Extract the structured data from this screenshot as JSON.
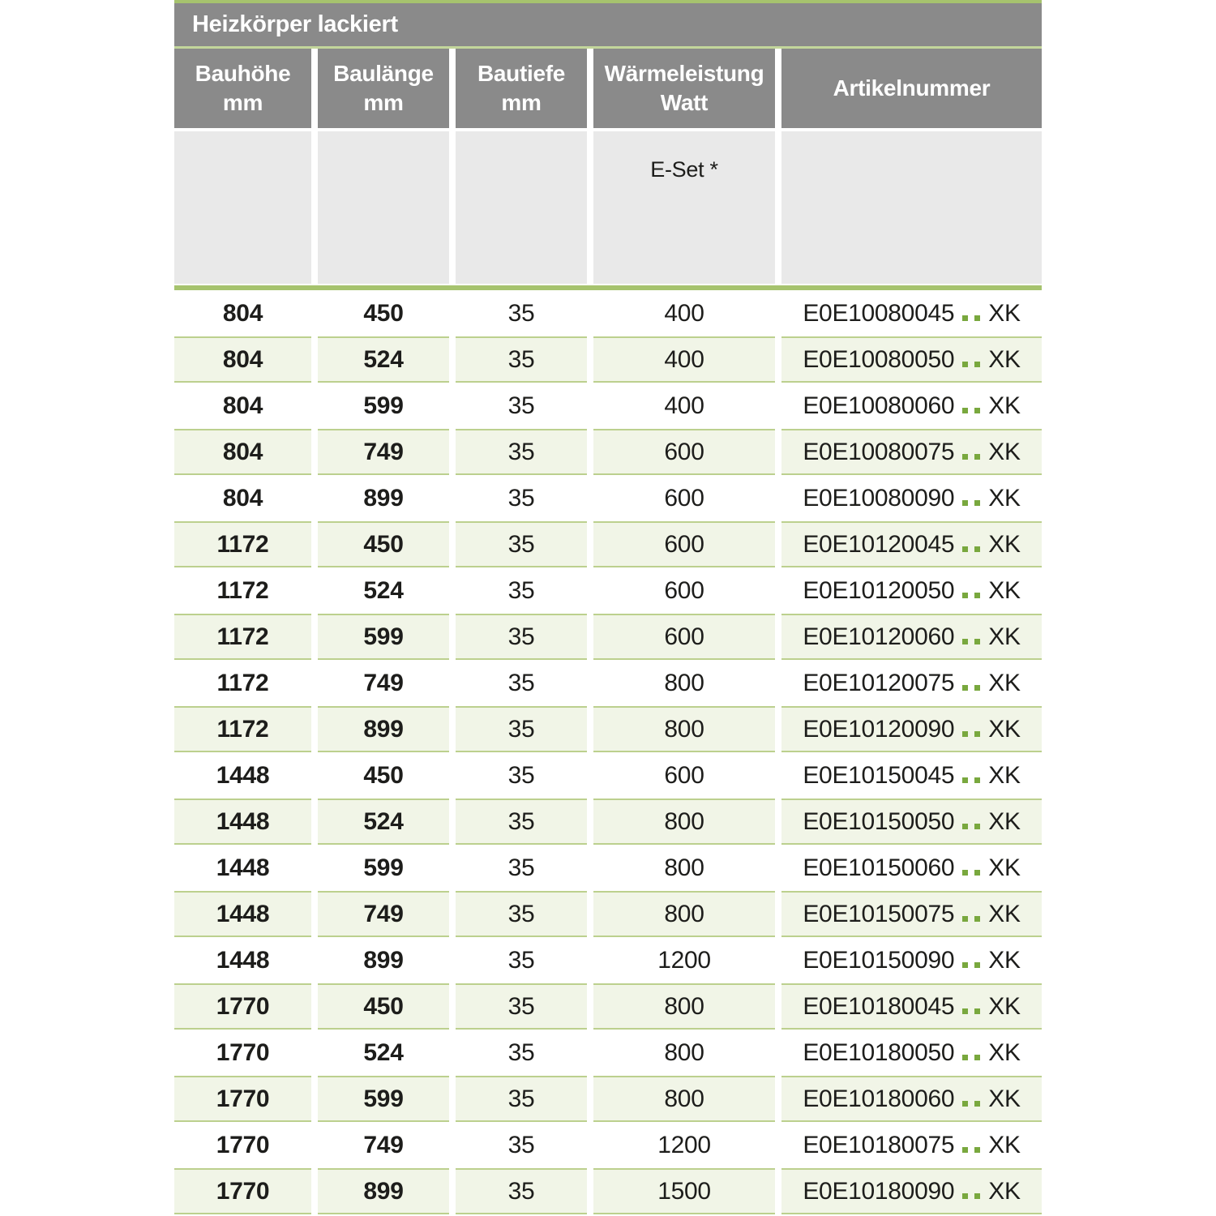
{
  "table": {
    "title": "Heizkörper lackiert",
    "columns": [
      {
        "label": "Bauhöhe",
        "unit": "mm"
      },
      {
        "label": "Baulänge",
        "unit": "mm"
      },
      {
        "label": "Bautiefe",
        "unit": "mm"
      },
      {
        "label": "Wärmeleistung",
        "unit": "Watt",
        "subheader": "E-Set *"
      },
      {
        "label": "Artikelnummer",
        "unit": ""
      }
    ],
    "rows": [
      {
        "bauhoehe": "804",
        "baulaenge": "450",
        "bautiefe": "35",
        "watt": "400",
        "art_prefix": "E0E10080045",
        "art_suffix": "XK"
      },
      {
        "bauhoehe": "804",
        "baulaenge": "524",
        "bautiefe": "35",
        "watt": "400",
        "art_prefix": "E0E10080050",
        "art_suffix": "XK"
      },
      {
        "bauhoehe": "804",
        "baulaenge": "599",
        "bautiefe": "35",
        "watt": "400",
        "art_prefix": "E0E10080060",
        "art_suffix": "XK"
      },
      {
        "bauhoehe": "804",
        "baulaenge": "749",
        "bautiefe": "35",
        "watt": "600",
        "art_prefix": "E0E10080075",
        "art_suffix": "XK"
      },
      {
        "bauhoehe": "804",
        "baulaenge": "899",
        "bautiefe": "35",
        "watt": "600",
        "art_prefix": "E0E10080090",
        "art_suffix": "XK"
      },
      {
        "bauhoehe": "1172",
        "baulaenge": "450",
        "bautiefe": "35",
        "watt": "600",
        "art_prefix": "E0E10120045",
        "art_suffix": "XK"
      },
      {
        "bauhoehe": "1172",
        "baulaenge": "524",
        "bautiefe": "35",
        "watt": "600",
        "art_prefix": "E0E10120050",
        "art_suffix": "XK"
      },
      {
        "bauhoehe": "1172",
        "baulaenge": "599",
        "bautiefe": "35",
        "watt": "600",
        "art_prefix": "E0E10120060",
        "art_suffix": "XK"
      },
      {
        "bauhoehe": "1172",
        "baulaenge": "749",
        "bautiefe": "35",
        "watt": "800",
        "art_prefix": "E0E10120075",
        "art_suffix": "XK"
      },
      {
        "bauhoehe": "1172",
        "baulaenge": "899",
        "bautiefe": "35",
        "watt": "800",
        "art_prefix": "E0E10120090",
        "art_suffix": "XK"
      },
      {
        "bauhoehe": "1448",
        "baulaenge": "450",
        "bautiefe": "35",
        "watt": "600",
        "art_prefix": "E0E10150045",
        "art_suffix": "XK"
      },
      {
        "bauhoehe": "1448",
        "baulaenge": "524",
        "bautiefe": "35",
        "watt": "800",
        "art_prefix": "E0E10150050",
        "art_suffix": "XK"
      },
      {
        "bauhoehe": "1448",
        "baulaenge": "599",
        "bautiefe": "35",
        "watt": "800",
        "art_prefix": "E0E10150060",
        "art_suffix": "XK"
      },
      {
        "bauhoehe": "1448",
        "baulaenge": "749",
        "bautiefe": "35",
        "watt": "800",
        "art_prefix": "E0E10150075",
        "art_suffix": "XK"
      },
      {
        "bauhoehe": "1448",
        "baulaenge": "899",
        "bautiefe": "35",
        "watt": "1200",
        "art_prefix": "E0E10150090",
        "art_suffix": "XK"
      },
      {
        "bauhoehe": "1770",
        "baulaenge": "450",
        "bautiefe": "35",
        "watt": "800",
        "art_prefix": "E0E10180045",
        "art_suffix": "XK"
      },
      {
        "bauhoehe": "1770",
        "baulaenge": "524",
        "bautiefe": "35",
        "watt": "800",
        "art_prefix": "E0E10180050",
        "art_suffix": "XK"
      },
      {
        "bauhoehe": "1770",
        "baulaenge": "599",
        "bautiefe": "35",
        "watt": "800",
        "art_prefix": "E0E10180060",
        "art_suffix": "XK"
      },
      {
        "bauhoehe": "1770",
        "baulaenge": "749",
        "bautiefe": "35",
        "watt": "1200",
        "art_prefix": "E0E10180075",
        "art_suffix": "XK"
      },
      {
        "bauhoehe": "1770",
        "baulaenge": "899",
        "bautiefe": "35",
        "watt": "1500",
        "art_prefix": "E0E10180090",
        "art_suffix": "XK"
      }
    ]
  },
  "colors": {
    "accent_green": "#a6c36e",
    "title_underline_green": "#c3d69b",
    "dot_green": "#79a83e",
    "header_gray": "#8a8a8a",
    "subheader_gray": "#e9e9e9",
    "row_tint_green": "#f1f5e7",
    "row_border_green": "#bcd08e"
  }
}
